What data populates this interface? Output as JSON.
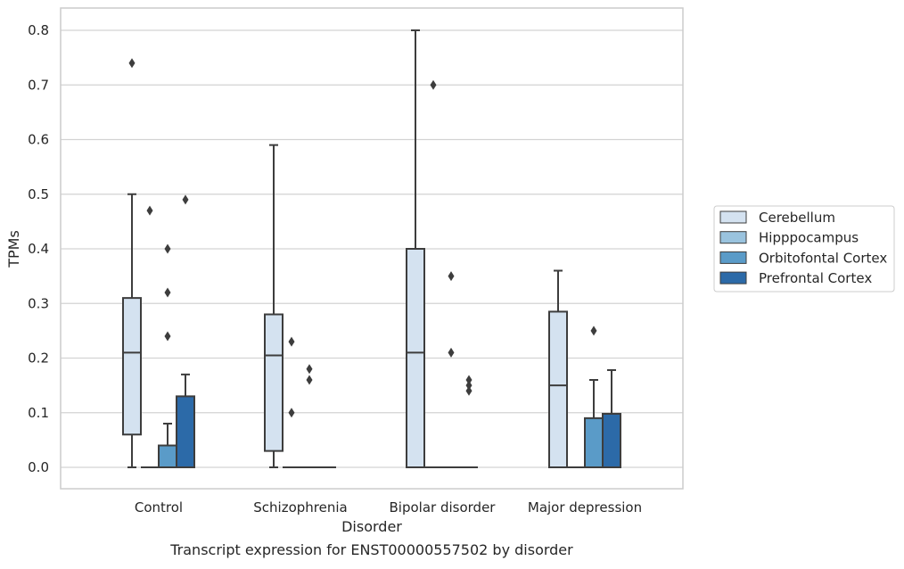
{
  "chart_data": {
    "type": "box",
    "xlabel": "Disorder",
    "ylabel": "TPMs",
    "caption": "Transcript expression for ENST00000557502 by disorder",
    "ylim": [
      -0.04,
      0.84
    ],
    "yticks": [
      "0.0",
      "0.1",
      "0.2",
      "0.3",
      "0.4",
      "0.5",
      "0.6",
      "0.7",
      "0.8"
    ],
    "grid": "horizontal",
    "legend_position": "right",
    "categories": [
      "Control",
      "Schizophrenia",
      "Bipolar disorder",
      "Major depression"
    ],
    "series": [
      {
        "name": "Cerebellum",
        "color": "#d4e2f0",
        "boxes": [
          {
            "whisker_low": 0.0,
            "q1": 0.06,
            "median": 0.21,
            "q3": 0.31,
            "whisker_high": 0.5,
            "outliers": [
              0.74
            ]
          },
          {
            "whisker_low": 0.0,
            "q1": 0.03,
            "median": 0.205,
            "q3": 0.28,
            "whisker_high": 0.59,
            "outliers": []
          },
          {
            "whisker_low": 0.0,
            "q1": 0.0,
            "median": 0.21,
            "q3": 0.4,
            "whisker_high": 0.8,
            "outliers": []
          },
          {
            "whisker_low": 0.0,
            "q1": 0.0,
            "median": 0.15,
            "q3": 0.285,
            "whisker_high": 0.36,
            "outliers": []
          }
        ]
      },
      {
        "name": "Hipppocampus",
        "color": "#9ac3de",
        "boxes": [
          {
            "whisker_low": 0.0,
            "q1": 0.0,
            "median": 0.0,
            "q3": 0.0,
            "whisker_high": 0.0,
            "outliers": [
              0.47
            ]
          },
          {
            "whisker_low": 0.0,
            "q1": 0.0,
            "median": 0.0,
            "q3": 0.0,
            "whisker_high": 0.0,
            "outliers": [
              0.1,
              0.23
            ]
          },
          {
            "whisker_low": 0.0,
            "q1": 0.0,
            "median": 0.0,
            "q3": 0.0,
            "whisker_high": 0.0,
            "outliers": [
              0.7
            ]
          },
          {
            "whisker_low": 0.0,
            "q1": 0.0,
            "median": 0.0,
            "q3": 0.0,
            "whisker_high": 0.0,
            "outliers": []
          }
        ]
      },
      {
        "name": "Orbitofontal Cortex",
        "color": "#5a9bc8",
        "boxes": [
          {
            "whisker_low": 0.0,
            "q1": 0.0,
            "median": 0.0,
            "q3": 0.04,
            "whisker_high": 0.08,
            "outliers": [
              0.24,
              0.32,
              0.4
            ]
          },
          {
            "whisker_low": 0.0,
            "q1": 0.0,
            "median": 0.0,
            "q3": 0.0,
            "whisker_high": 0.0,
            "outliers": [
              0.16,
              0.18
            ]
          },
          {
            "whisker_low": 0.0,
            "q1": 0.0,
            "median": 0.0,
            "q3": 0.0,
            "whisker_high": 0.0,
            "outliers": [
              0.21,
              0.35
            ]
          },
          {
            "whisker_low": 0.0,
            "q1": 0.0,
            "median": 0.0,
            "q3": 0.09,
            "whisker_high": 0.16,
            "outliers": [
              0.25
            ]
          }
        ]
      },
      {
        "name": "Prefrontal Cortex",
        "color": "#2c6aa8",
        "boxes": [
          {
            "whisker_low": 0.0,
            "q1": 0.0,
            "median": 0.0,
            "q3": 0.13,
            "whisker_high": 0.17,
            "outliers": [
              0.49
            ]
          },
          {
            "whisker_low": 0.0,
            "q1": 0.0,
            "median": 0.0,
            "q3": 0.0,
            "whisker_high": 0.0,
            "outliers": []
          },
          {
            "whisker_low": 0.0,
            "q1": 0.0,
            "median": 0.0,
            "q3": 0.0,
            "whisker_high": 0.0,
            "outliers": [
              0.14,
              0.15,
              0.16
            ]
          },
          {
            "whisker_low": 0.0,
            "q1": 0.0,
            "median": 0.0,
            "q3": 0.098,
            "whisker_high": 0.178,
            "outliers": []
          }
        ]
      }
    ]
  }
}
